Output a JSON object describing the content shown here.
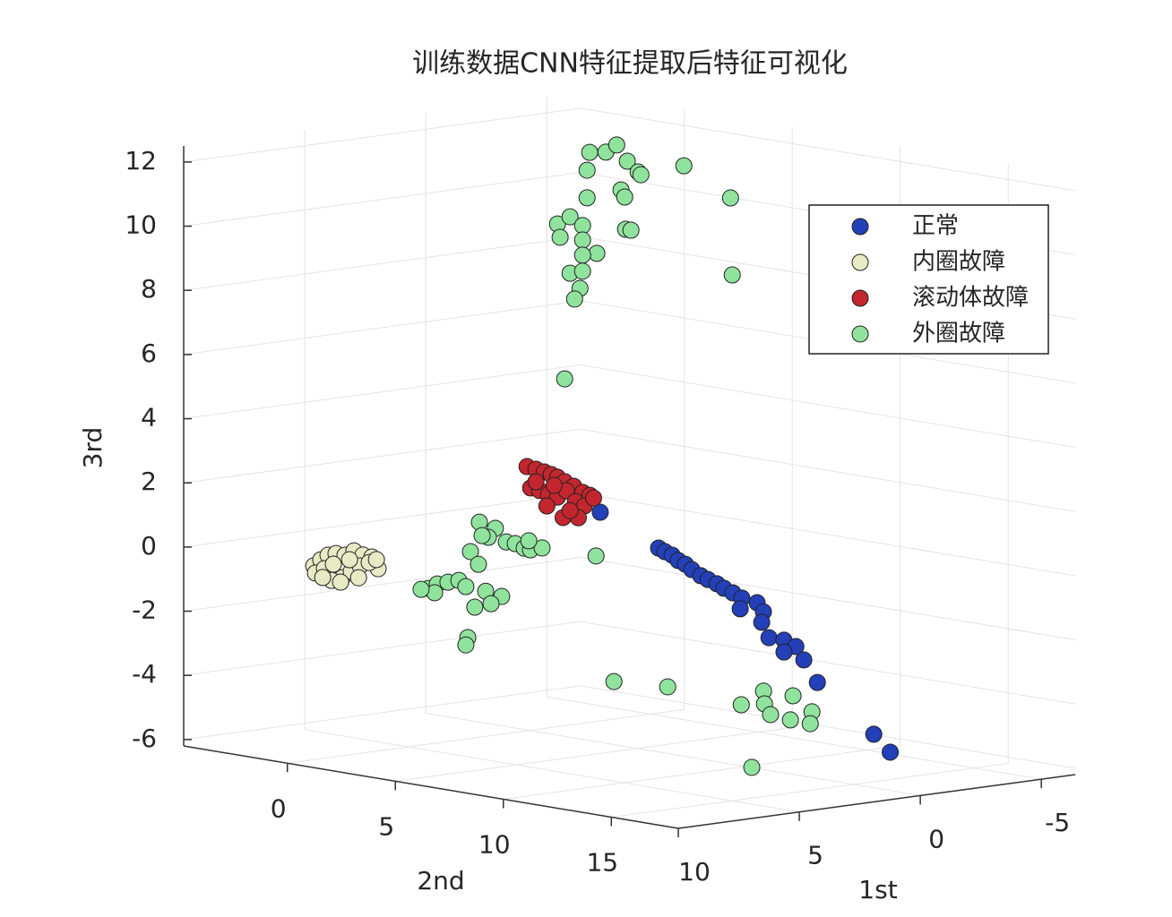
{
  "chart_data": {
    "type": "scatter3d",
    "title": "训练数据CNN特征提取后特征可视化",
    "xlabel": "1st",
    "ylabel": "2nd",
    "zlabel": "3rd",
    "xlim": [
      -6.4,
      10
    ],
    "ylim": [
      -4.8,
      18.1
    ],
    "zlim": [
      -6.2,
      12.5
    ],
    "xticks": [
      -5,
      0,
      5,
      10
    ],
    "yticks": [
      0,
      5,
      10,
      15
    ],
    "zticks": [
      -6,
      -4,
      -2,
      0,
      2,
      4,
      6,
      8,
      10,
      12
    ],
    "grid": true,
    "legend": "northeast",
    "series": [
      {
        "name": "正常",
        "color": "#2340b8",
        "x": [
          7.78,
          5.37,
          5.11,
          4.81,
          4.56,
          4.26,
          4.0,
          3.63,
          3.33,
          2.96,
          2.67,
          2.3,
          1.93,
          2.0,
          1.3,
          1.04,
          1.11,
          0.81,
          0.19,
          -0.3,
          0.19,
          -0.63,
          -1.19,
          -3.52,
          -4.2
        ],
        "y": [
          12,
          12,
          12,
          12,
          12,
          12,
          12,
          12,
          12,
          12,
          12,
          12,
          12,
          12,
          12,
          12,
          12,
          12,
          12,
          12,
          12,
          12,
          12,
          12,
          12
        ],
        "z": [
          2.74,
          1.38,
          1.24,
          1.1,
          0.91,
          0.76,
          0.57,
          0.34,
          0.19,
          0.02,
          -0.15,
          -0.33,
          -0.53,
          -0.86,
          -0.74,
          -1.05,
          -1.37,
          -1.88,
          -2.02,
          -2.27,
          -2.39,
          -2.72,
          -3.48,
          -5.33,
          -5.96
        ]
      },
      {
        "name": "内圈故障",
        "color": "#e8eac6",
        "x": [
          8.91,
          8.62,
          8.32,
          7.99,
          7.62,
          7.25,
          6.88,
          6.51,
          6.25,
          8.84,
          8.47,
          8.1,
          7.73,
          7.36,
          6.99,
          6.62,
          8.17,
          7.8,
          7.06,
          6.32,
          7.43,
          8.54
        ],
        "y": [
          0,
          0,
          0,
          0,
          0,
          0,
          0,
          0,
          0,
          0,
          0,
          0,
          0,
          0,
          0,
          0,
          0,
          0,
          0,
          0,
          0,
          0
        ],
        "z": [
          -0.16,
          0.0,
          0.11,
          0.13,
          0.04,
          0.14,
          -0.03,
          -0.13,
          -0.52,
          -0.39,
          -0.29,
          -0.19,
          -0.65,
          -0.49,
          -0.36,
          -0.29,
          -0.69,
          -0.78,
          -0.72,
          -0.23,
          -0.12,
          -0.56
        ]
      },
      {
        "name": "滚动体故障",
        "color": "#c3262e",
        "x": [
          4.56,
          4.19,
          3.85,
          3.56,
          3.3,
          3.0,
          2.63,
          2.26,
          1.96,
          4.41,
          4.04,
          3.67,
          3.3,
          2.93,
          2.56,
          2.19,
          3.74,
          3.07,
          2.44,
          4.19,
          3.44,
          2.78,
          1.81
        ],
        "y": [
          5,
          5,
          5,
          5,
          5,
          5,
          5,
          5,
          5,
          5,
          5,
          5,
          5,
          5,
          5,
          5,
          5,
          5,
          5,
          5,
          5,
          5,
          5
        ],
        "z": [
          3.05,
          2.93,
          2.81,
          2.7,
          2.59,
          2.42,
          2.24,
          2.01,
          1.89,
          2.37,
          2.25,
          2.09,
          1.97,
          2.13,
          1.76,
          1.58,
          1.74,
          1.31,
          1.24,
          2.54,
          2.35,
          1.5,
          1.79
        ]
      },
      {
        "name": "外圈故障",
        "color": "#8fe39c",
        "x": [
          -4,
          -4,
          -4,
          -4,
          -4,
          -4,
          -4,
          -4,
          -4,
          -4,
          -4,
          -4,
          -4,
          -4,
          -4,
          -4,
          -4,
          -4,
          -4,
          -4,
          -4,
          -4,
          -4,
          -4,
          -4,
          -4,
          -4,
          3.85,
          3.19,
          3.48,
          2.74,
          2.37,
          2.0,
          1.74,
          1.26,
          1.81,
          3.74,
          4.22,
          3.89,
          5.96,
          5.59,
          5.15,
          4.7,
          4.41,
          3.59,
          2.93,
          3.37,
          4.04,
          4.33,
          4.41,
          5.7,
          6.26,
          6.17,
          5.43,
          3.21,
          0.17,
          -0.75,
          -0.79,
          -1.97,
          -1.04,
          -1.86,
          -2.75,
          -2.68,
          1.52
        ],
        "y": [
          -1.69,
          -0.94,
          -0.44,
          0.05,
          0.55,
          0.68,
          -1.81,
          2.67,
          4.83,
          -0.24,
          -0.07,
          -1.81,
          -3.18,
          -2.6,
          -2.02,
          -3.06,
          -2.02,
          -0.03,
          0.22,
          -1.36,
          -2.02,
          -2.6,
          -2.02,
          -2.14,
          -2.39,
          4.91,
          -2.85,
          2,
          2,
          2,
          2,
          2,
          2,
          2,
          2,
          2,
          2,
          2,
          2,
          2,
          2,
          2,
          2,
          2,
          2,
          2,
          2,
          2,
          2,
          2,
          2,
          2,
          10,
          10,
          10,
          10,
          10,
          10,
          10,
          10,
          10,
          10,
          10,
          12
        ],
        "z": [
          11.22,
          11.31,
          11.59,
          11.14,
          10.86,
          10.79,
          10.65,
          11.29,
          10.53,
          10.21,
          10.01,
          9.79,
          8.82,
          9.11,
          8.9,
          8.42,
          8.45,
          9.01,
          9.01,
          8.11,
          7.98,
          7.35,
          7.48,
          6.93,
          6.57,
          8.14,
          4.03,
          0.91,
          0.65,
          0.4,
          0.18,
          0.09,
          -0.09,
          -0.17,
          -0.16,
          0.12,
          0.48,
          0.03,
          -0.4,
          -0.94,
          -0.84,
          -0.83,
          -0.82,
          -1.04,
          -1.27,
          -1.5,
          -1.68,
          -1.72,
          -2.64,
          -2.86,
          -1.1,
          -0.94,
          0.99,
          -3.0,
          -3.39,
          -4.26,
          -3.93,
          -4.33,
          -4.2,
          -4.69,
          -4.94,
          -4.78,
          -5.14,
          -5.85
        ]
      }
    ]
  }
}
